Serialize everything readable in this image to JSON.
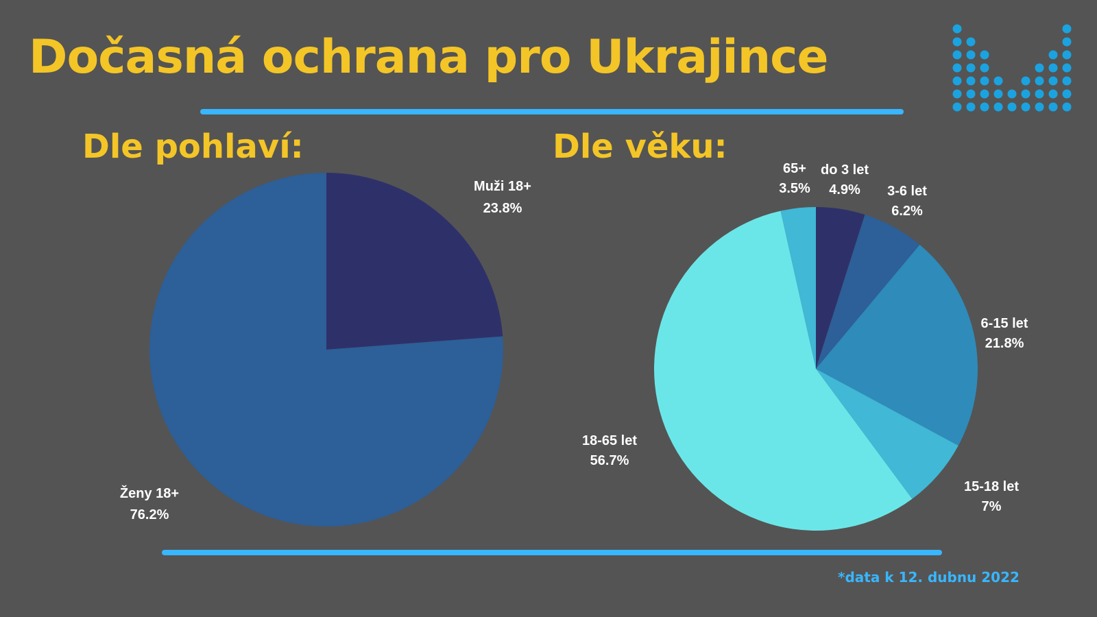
{
  "title": "Dočasná ochrana pro Ukrajince",
  "footnote": "*data k 12. dubnu 2022",
  "colors": {
    "background": "#545454",
    "title": "#f4c526",
    "accent": "#38b6ff"
  },
  "chart_data": [
    {
      "type": "pie",
      "title": "Dle pohlaví:",
      "slices": [
        {
          "label": "Muži 18+",
          "value": 23.8,
          "value_text": "23.8%",
          "color": "#2e3169"
        },
        {
          "label": "Ženy 18+",
          "value": 76.2,
          "value_text": "76.2%",
          "color": "#2d5f98"
        }
      ]
    },
    {
      "type": "pie",
      "title": "Dle věku:",
      "slices": [
        {
          "label": "do 3 let",
          "value": 4.9,
          "value_text": "4.9%",
          "color": "#2e3169"
        },
        {
          "label": "3-6 let",
          "value": 6.2,
          "value_text": "6.2%",
          "color": "#2d5f98"
        },
        {
          "label": "6-15 let",
          "value": 21.8,
          "value_text": "21.8%",
          "color": "#2e8bba"
        },
        {
          "label": "15-18 let",
          "value": 7,
          "value_text": "7%",
          "color": "#40b8d6"
        },
        {
          "label": "18-65 let",
          "value": 56.7,
          "value_text": "56.7%",
          "color": "#6be6e8"
        },
        {
          "label": "65+",
          "value": 3.5,
          "value_text": "3.5%",
          "color": "#40b8d6"
        }
      ]
    }
  ]
}
